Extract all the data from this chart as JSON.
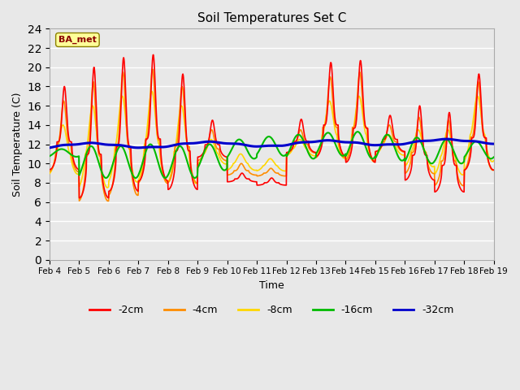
{
  "title": "Soil Temperatures Set C",
  "xlabel": "Time",
  "ylabel": "Soil Temperature (C)",
  "ylim": [
    0,
    24
  ],
  "yticks": [
    0,
    2,
    4,
    6,
    8,
    10,
    12,
    14,
    16,
    18,
    20,
    22,
    24
  ],
  "x_labels": [
    "Feb 4",
    "Feb 5",
    "Feb 6",
    "Feb 7",
    "Feb 8",
    "Feb 9",
    "Feb 10",
    "Feb 11",
    "Feb 12",
    "Feb 13",
    "Feb 14",
    "Feb 15",
    "Feb 16",
    "Feb 17",
    "Feb 18",
    "Feb 19"
  ],
  "annotation_text": "BA_met",
  "annotation_color": "#8B0000",
  "annotation_bg": "#FFFF99",
  "colors": {
    "-2cm": "#FF0000",
    "-4cm": "#FF8C00",
    "-8cm": "#FFD700",
    "-16cm": "#00BB00",
    "-32cm": "#0000CC"
  },
  "line_widths": {
    "-2cm": 1.2,
    "-4cm": 1.2,
    "-8cm": 1.2,
    "-16cm": 1.5,
    "-32cm": 2.2
  },
  "background_color": "#E8E8E8",
  "figsize": [
    6.4,
    4.8
  ],
  "dpi": 100
}
